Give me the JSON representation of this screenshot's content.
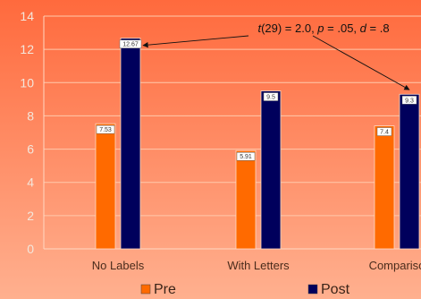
{
  "chart_data": {
    "type": "bar",
    "categories": [
      "No Labels",
      "With Letters",
      "Compariso"
    ],
    "series": [
      {
        "name": "Pre",
        "values": [
          7.53,
          5.91,
          7.4
        ],
        "labels": [
          "7.53",
          "5.91",
          "7.4"
        ],
        "color": "#ff6a00"
      },
      {
        "name": "Post",
        "values": [
          12.67,
          9.5,
          9.3
        ],
        "labels": [
          "12.67",
          "9.5",
          "9.3"
        ],
        "color": "#00005c"
      }
    ],
    "ylim": [
      0,
      14
    ],
    "yticks": [
      "0",
      "2",
      "4",
      "6",
      "8",
      "10",
      "12",
      "14"
    ],
    "grid": true,
    "legend": "bottom",
    "annotation": {
      "text_parts": [
        {
          "t": "t",
          "i": true
        },
        {
          "t": "(29) = 2.0, ",
          "i": false
        },
        {
          "t": "p",
          "i": true
        },
        {
          "t": " = .05, ",
          "i": false
        },
        {
          "t": "d",
          "i": true
        },
        {
          "t": " = .8",
          "i": false
        }
      ],
      "targets": [
        {
          "series": 1,
          "category": 0
        },
        {
          "series": 1,
          "category": 2
        }
      ]
    },
    "background": [
      "#ff6a3d",
      "#ffb08f"
    ]
  }
}
